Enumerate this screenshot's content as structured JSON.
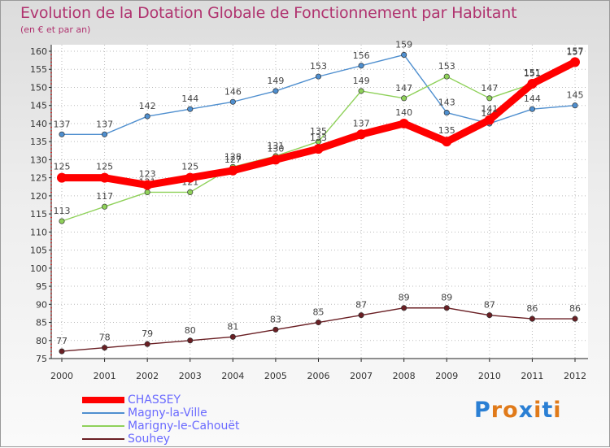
{
  "header": {
    "title": "Evolution de la Dotation Globale de Fonctionnement par Habitant",
    "subtitle": "(en € et par an)"
  },
  "logo": {
    "letters": [
      "P",
      "r",
      "o",
      "x",
      "i",
      "t",
      "i"
    ],
    "colors": [
      "#2a7fd4",
      "#e07a1a",
      "#e07a1a",
      "#2a7fd4",
      "#e07a1a",
      "#2a7fd4",
      "#e07a1a"
    ]
  },
  "chart_data": {
    "type": "line",
    "title": "Evolution de la Dotation Globale de Fonctionnement par Habitant",
    "subtitle": "(en € et par an)",
    "xlabel": "",
    "ylabel": "",
    "x": [
      "2000",
      "2001",
      "2002",
      "2003",
      "2004",
      "2005",
      "2006",
      "2007",
      "2008",
      "2009",
      "2010",
      "2011",
      "2012"
    ],
    "ylim": [
      75,
      160
    ],
    "yticks": [
      75,
      80,
      85,
      90,
      95,
      100,
      105,
      110,
      115,
      120,
      125,
      130,
      135,
      140,
      145,
      150,
      155,
      160
    ],
    "legend_position": "bottom-left",
    "series": [
      {
        "name": "Souhey",
        "color": "#6a1f24",
        "values": [
          77,
          78,
          79,
          80,
          81,
          83,
          85,
          87,
          89,
          89,
          87,
          86,
          86
        ]
      },
      {
        "name": "Magny-la-Ville",
        "color": "#4f8fcf",
        "values": [
          137,
          137,
          142,
          144,
          146,
          149,
          153,
          156,
          159,
          143,
          140,
          144,
          145
        ]
      },
      {
        "name": "Marigny-le-Cahouët",
        "color": "#8fd15a",
        "values": [
          113,
          117,
          121,
          121,
          128,
          131,
          135,
          149,
          147,
          153,
          147,
          151,
          157
        ]
      },
      {
        "name": "CHASSEY",
        "color": "#ff0000",
        "values": [
          125,
          125,
          123,
          125,
          127,
          130,
          133,
          137,
          140,
          135,
          141,
          151,
          157
        ]
      }
    ],
    "legend_order": [
      "CHASSEY",
      "Magny-la-Ville",
      "Marigny-le-Cahouët",
      "Souhey"
    ]
  }
}
